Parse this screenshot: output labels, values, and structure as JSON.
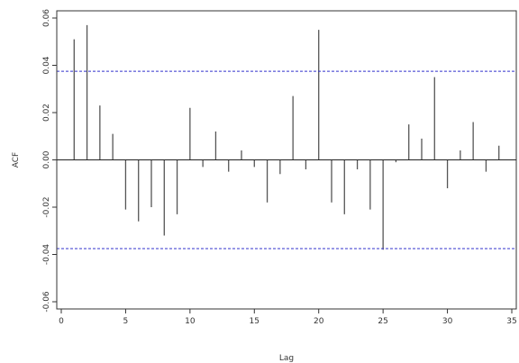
{
  "chart_data": {
    "type": "bar",
    "style": "acf-stem",
    "xlabel": "Lag",
    "ylabel": "ACF",
    "xlim": [
      0,
      35
    ],
    "ylim": [
      -0.06,
      0.06
    ],
    "x_ticks": [
      0,
      5,
      10,
      15,
      20,
      25,
      30,
      35
    ],
    "x_tick_labels": [
      "0",
      "5",
      "10",
      "15",
      "20",
      "25",
      "30",
      "35"
    ],
    "y_ticks": [
      -0.06,
      -0.04,
      -0.02,
      0.0,
      0.02,
      0.04,
      0.06
    ],
    "y_tick_labels": [
      "-0.06",
      "-0.04",
      "-0.02",
      "0.00",
      "0.02",
      "0.04",
      "0.06"
    ],
    "confidence_band": [
      -0.0375,
      0.0375
    ],
    "lags": [
      1,
      2,
      3,
      4,
      5,
      6,
      7,
      8,
      9,
      10,
      11,
      12,
      13,
      14,
      15,
      16,
      17,
      18,
      19,
      20,
      21,
      22,
      23,
      24,
      25,
      26,
      27,
      28,
      29,
      30,
      31,
      32,
      33,
      34
    ],
    "values": [
      0.051,
      0.057,
      0.023,
      0.011,
      -0.021,
      -0.026,
      -0.02,
      -0.032,
      -0.023,
      0.022,
      -0.003,
      0.012,
      -0.005,
      0.004,
      -0.003,
      -0.018,
      -0.006,
      0.027,
      -0.004,
      0.055,
      -0.018,
      -0.023,
      -0.004,
      -0.021,
      -0.038,
      -0.001,
      0.015,
      0.009,
      0.035,
      -0.012,
      0.004,
      0.016,
      -0.005,
      0.006
    ],
    "colors": {
      "stem": "#555555",
      "band": "#3333cc",
      "axis": "#333333"
    },
    "grid": false
  }
}
